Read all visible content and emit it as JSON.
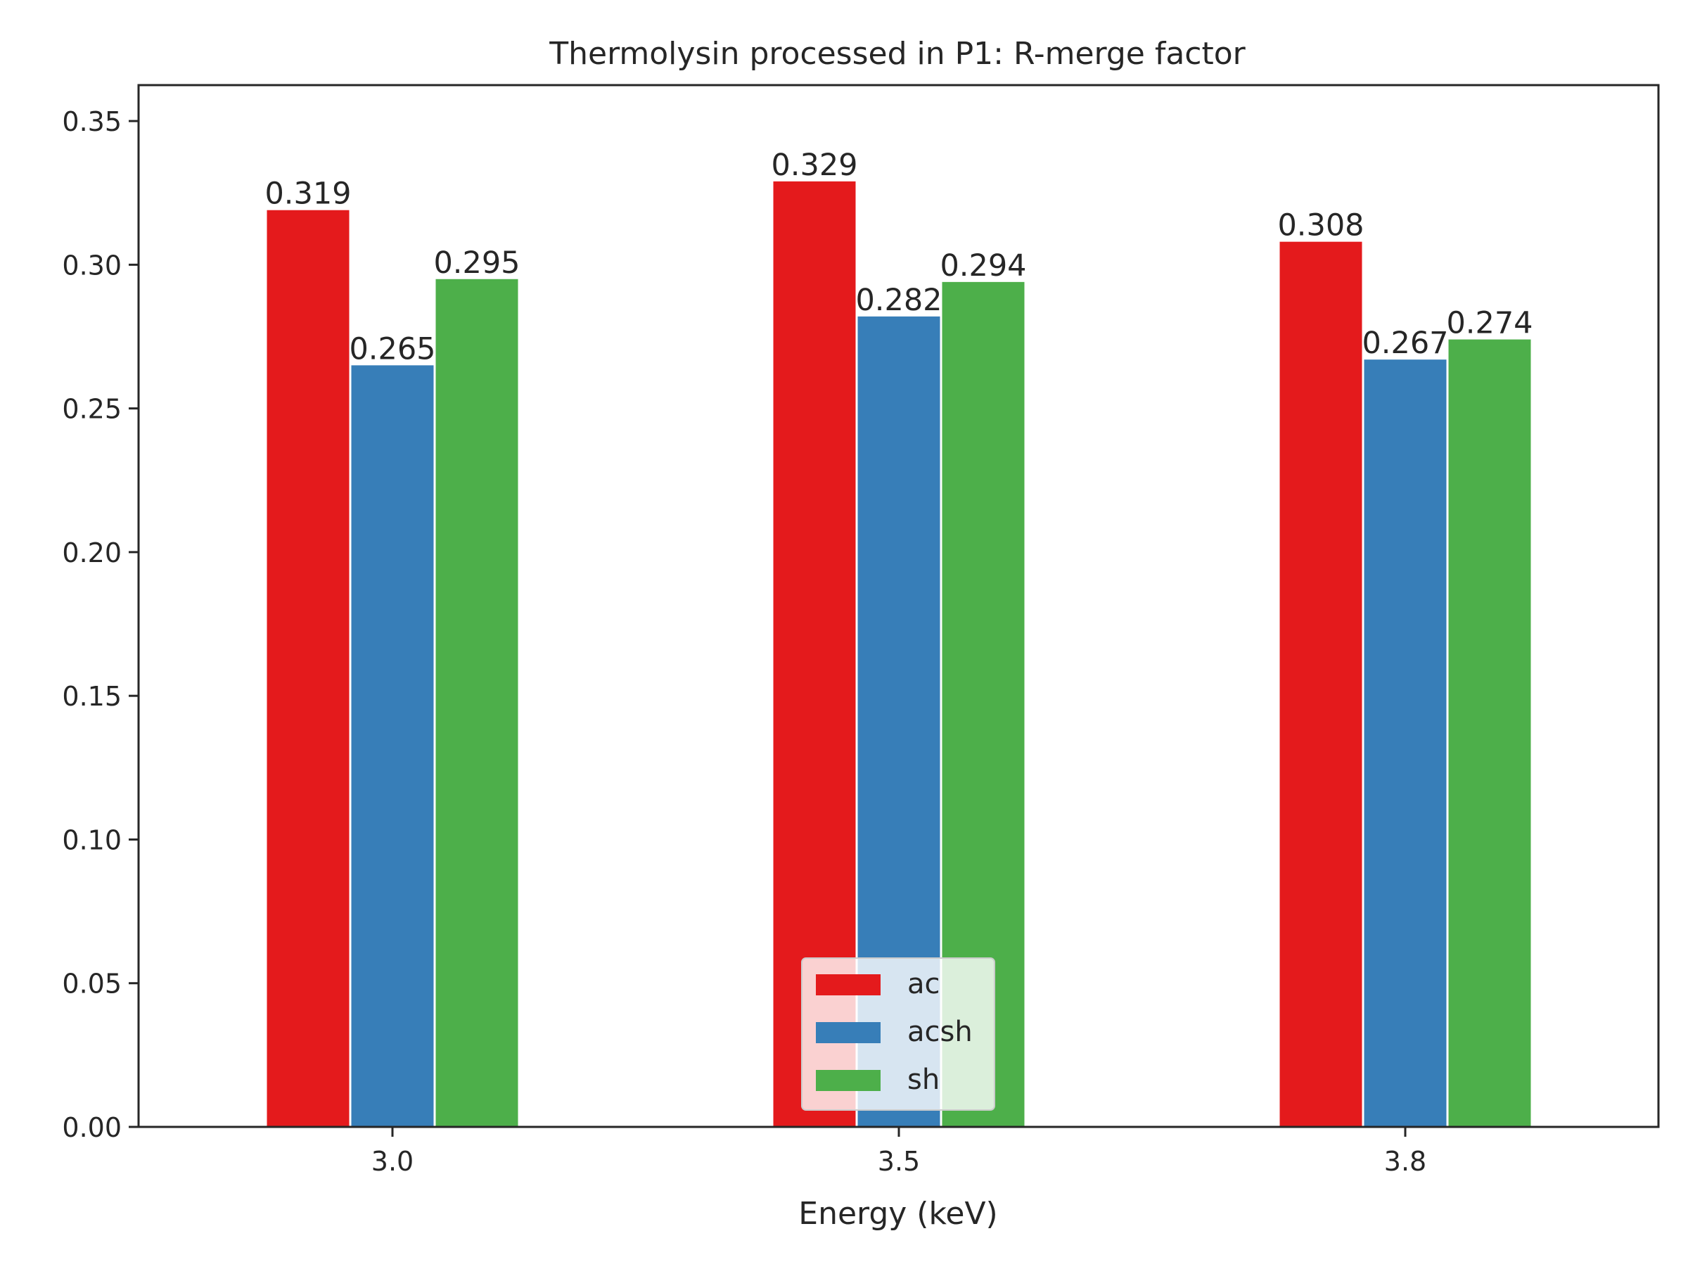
{
  "chart_data": {
    "type": "bar",
    "title": "Thermolysin processed in P1: R-merge factor",
    "xlabel": "Energy (keV)",
    "ylabel": "",
    "categories": [
      "3.0",
      "3.5",
      "3.8"
    ],
    "series": [
      {
        "name": "ac",
        "color": "#e41a1c",
        "values": [
          0.319,
          0.329,
          0.308
        ],
        "labels": [
          "0.319",
          "0.329",
          "0.308"
        ]
      },
      {
        "name": "acsh",
        "color": "#377eb8",
        "values": [
          0.265,
          0.282,
          0.267
        ],
        "labels": [
          "0.265",
          "0.282",
          "0.267"
        ]
      },
      {
        "name": "sh",
        "color": "#4daf4a",
        "values": [
          0.295,
          0.294,
          0.274
        ],
        "labels": [
          "0.295",
          "0.294",
          "0.274"
        ]
      }
    ],
    "ylim": [
      0,
      0.3625
    ],
    "yticks": [
      0.0,
      0.05,
      0.1,
      0.15,
      0.2,
      0.25,
      0.3,
      0.35
    ],
    "ytick_labels": [
      "0.00",
      "0.05",
      "0.10",
      "0.15",
      "0.20",
      "0.25",
      "0.30",
      "0.35"
    ],
    "grid": false,
    "legend_position": "bottom-center"
  }
}
